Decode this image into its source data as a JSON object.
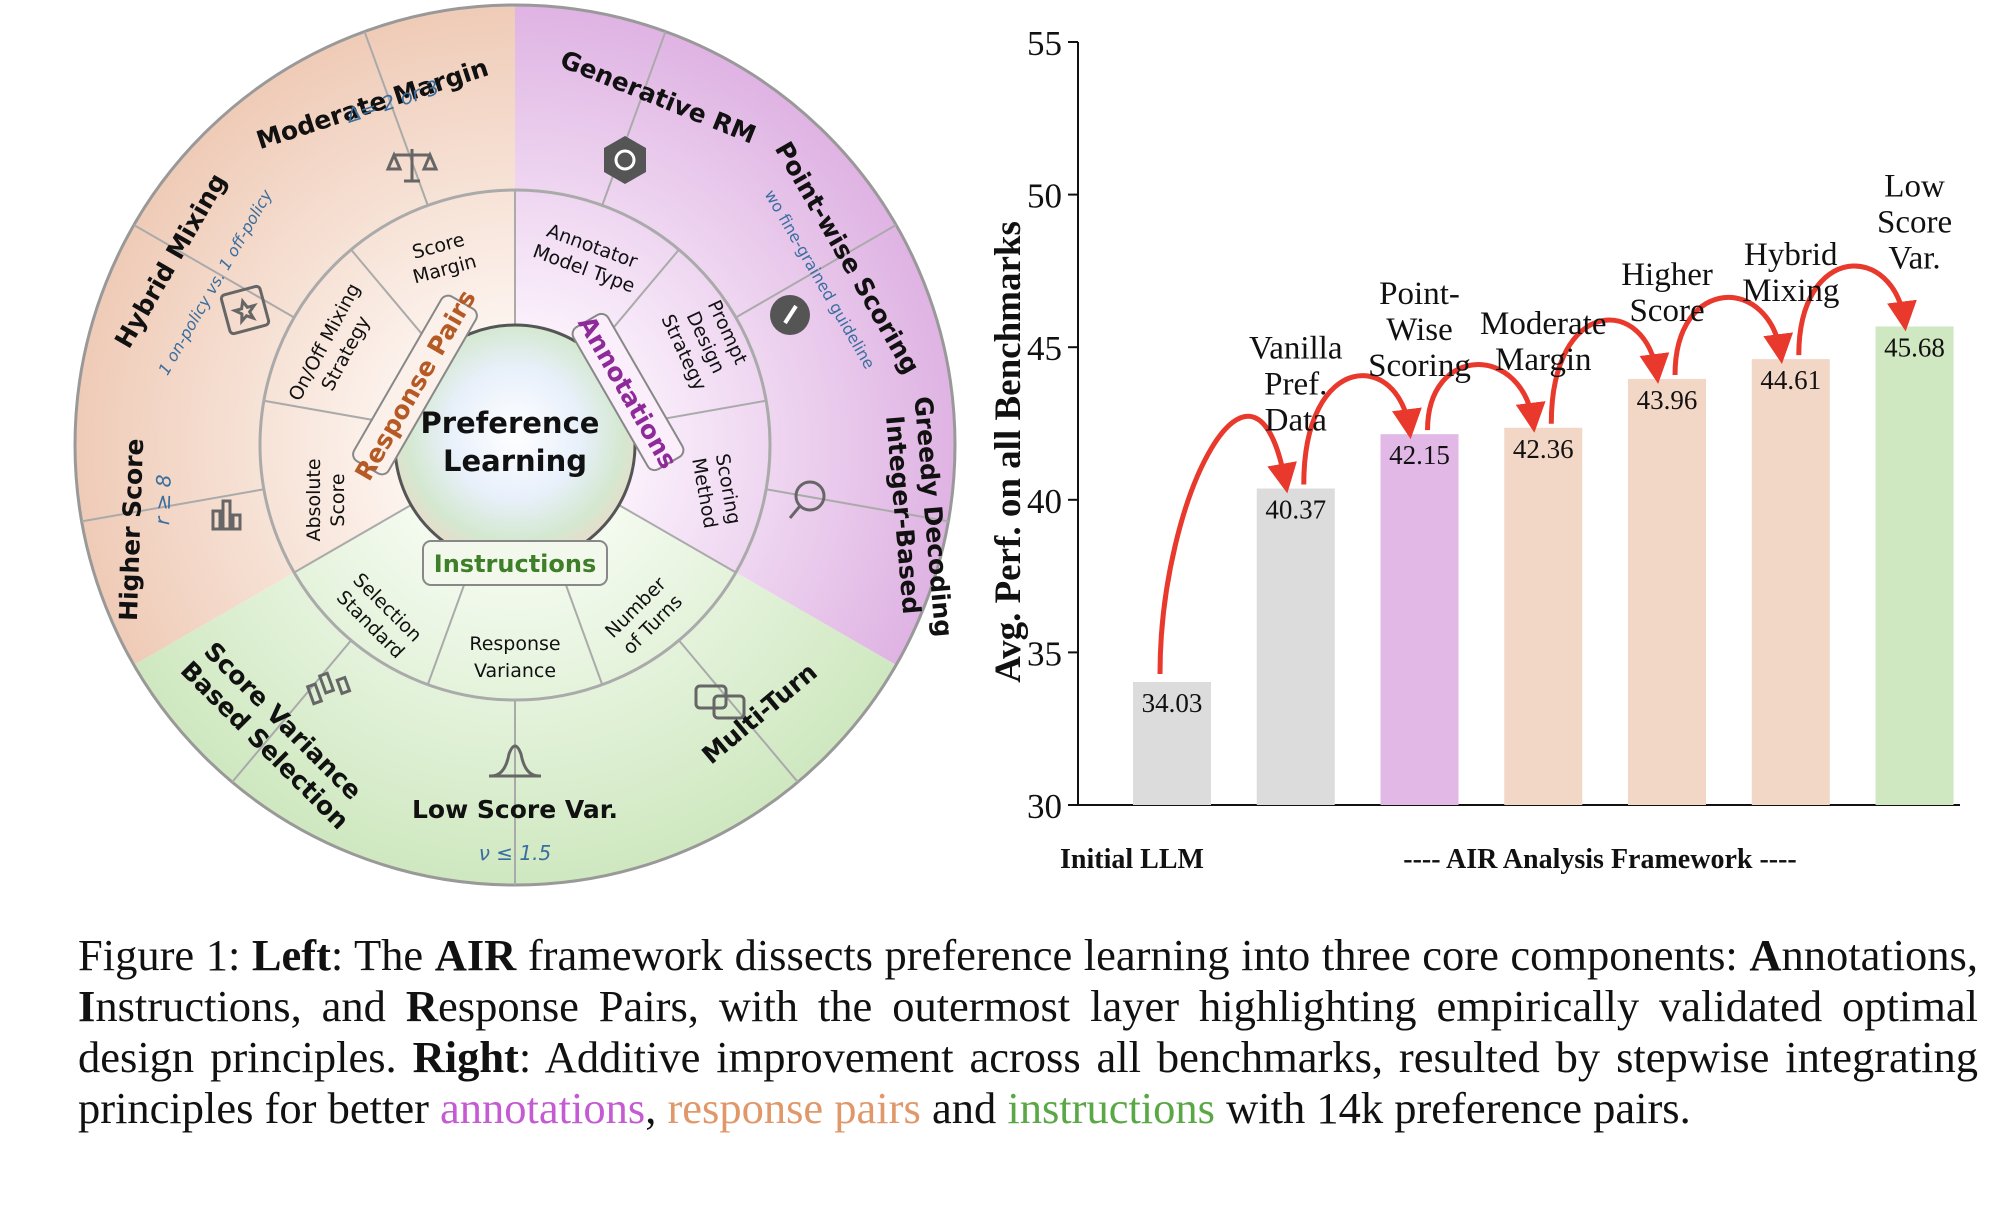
{
  "wheel": {
    "center": "Preference Learning",
    "center_lines": [
      "Preference",
      "Learning"
    ],
    "categories": {
      "annotations": "Annotations",
      "response_pairs": "Response Pairs",
      "instructions": "Instructions"
    },
    "inner": {
      "score_margin": [
        "Score",
        "Margin"
      ],
      "annotator_model_type": [
        "Annotator",
        "Model Type"
      ],
      "prompt_design_strategy": [
        "Prompt",
        "Design",
        "Strategy"
      ],
      "scoring_method": [
        "Scoring",
        "Method"
      ],
      "number_of_turns": [
        "Number",
        "of Turns"
      ],
      "response_variance": [
        "Response",
        "Variance"
      ],
      "selection_standard": [
        "Selection",
        "Standard"
      ],
      "absolute_score": [
        "Absolute",
        "Score"
      ],
      "on_off_mixing_strategy": [
        "On/Off Mixing",
        "Strategy"
      ]
    },
    "outer": {
      "moderate_margin": {
        "title": "Moderate Margin",
        "sub": "Δ= 2 or 3"
      },
      "generative_rm": {
        "title": "Generative RM"
      },
      "point_wise_scoring": {
        "title": "Point-wise Scoring",
        "sub": "wo fine-grained guideline"
      },
      "integer_based_greedy_decoding": {
        "title": [
          "Integer-Based",
          "Greedy Decoding"
        ]
      },
      "multi_turn": {
        "title": "Multi-Turn"
      },
      "low_score_var": {
        "title": "Low Score Var.",
        "sub": "ν ≤ 1.5"
      },
      "score_variance_based_selection": {
        "title": [
          "Score Variance",
          "Based Selection"
        ]
      },
      "higher_score": {
        "title": "Higher Score",
        "sub": "r ≥ 8"
      },
      "hybrid_mixing": {
        "title": "Hybrid Mixing",
        "sub": "1 on-policy vs. 1 off-policy"
      }
    },
    "colors": {
      "annotations": "#e9c6ec",
      "response_pairs": "#f3d9cb",
      "instructions": "#d7ecc9"
    }
  },
  "chart_data": {
    "type": "bar",
    "categories": [
      "Initial LLM",
      "Vanilla Pref. Data",
      "Point-Wise Scoring",
      "Moderate Margin",
      "Higher Score",
      "Hybrid Mixing",
      "Low Score Var."
    ],
    "category_lines": [
      [],
      [
        "Vanilla",
        "Pref.",
        "Data"
      ],
      [
        "Point-",
        "Wise",
        "Scoring"
      ],
      [
        "Moderate",
        "Margin"
      ],
      [
        "Higher",
        "Score"
      ],
      [
        "Hybrid",
        "Mixing"
      ],
      [
        "Low",
        "Score",
        "Var."
      ]
    ],
    "values": [
      34.03,
      40.37,
      42.15,
      42.36,
      43.96,
      44.61,
      45.68
    ],
    "value_labels": [
      "34.03",
      "40.37",
      "42.15",
      "42.36",
      "43.96",
      "44.61",
      "45.68"
    ],
    "colors": [
      "#dcdcdc",
      "#dcdcdc",
      "#e2b8e6",
      "#f2d6c6",
      "#f2d6c6",
      "#f2d6c6",
      "#cfe8c2"
    ],
    "ylabel": "Avg. Perf. on all Benchmarks",
    "ylim": [
      30,
      55
    ],
    "yticks": [
      30,
      35,
      40,
      45,
      50,
      55
    ],
    "x_group_labels": {
      "left": "Initial LLM",
      "right": "---- AIR Analysis Framework ----"
    },
    "arrow_color": "#e8392c"
  },
  "caption": {
    "prefix": "Figure 1: ",
    "left_bold": "Left",
    "part1": ": The ",
    "air_bold": "AIR",
    "part2": " framework dissects preference learning into three core components: ",
    "a_bold": "A",
    "part3": "nnotations, ",
    "i_bold": "I",
    "part4": "nstructions, and ",
    "r_bold": "R",
    "part5": "esponse Pairs, with the outermost layer highlighting empirically validated optimal design principles. ",
    "right_bold": "Right",
    "part6": ": Additive improvement across all benchmarks, resulted by stepwise integrating principles for better ",
    "annotations_word": "annotations",
    "comma": ", ",
    "response_pairs_word": "response pairs",
    "and_word": " and ",
    "instructions_word": "instructions",
    "part7": " with 14k preference pairs."
  }
}
